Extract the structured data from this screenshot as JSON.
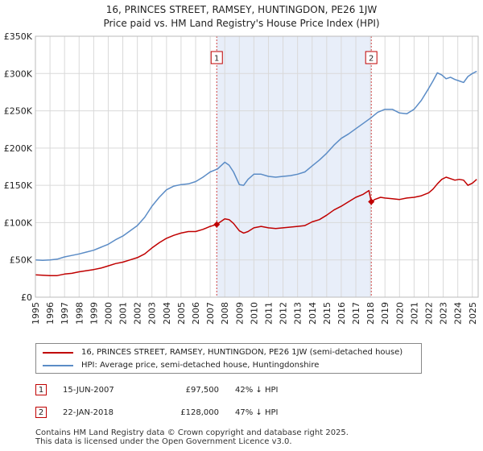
{
  "chart_data": {
    "type": "line",
    "title": "16, PRINCES STREET, RAMSEY, HUNTINGDON, PE26 1JW",
    "subtitle": "Price paid vs. HM Land Registry's House Price Index (HPI)",
    "ylim": [
      0,
      350000
    ],
    "xlim": [
      1995,
      2025.4
    ],
    "y_ticks": [
      0,
      50000,
      100000,
      150000,
      200000,
      250000,
      300000,
      350000
    ],
    "y_tick_labels": [
      "£0",
      "£50K",
      "£100K",
      "£150K",
      "£200K",
      "£250K",
      "£300K",
      "£350K"
    ],
    "x_ticks": [
      1995,
      1996,
      1997,
      1998,
      1999,
      2000,
      2001,
      2002,
      2003,
      2004,
      2005,
      2006,
      2007,
      2008,
      2009,
      2010,
      2011,
      2012,
      2013,
      2014,
      2015,
      2016,
      2017,
      2018,
      2019,
      2020,
      2021,
      2022,
      2023,
      2024,
      2025
    ],
    "shaded_period": [
      2007.45,
      2018.06
    ],
    "series": [
      {
        "name": "16, PRINCES STREET, RAMSEY, HUNTINGDON, PE26 1JW (semi-detached house)",
        "color": "#c00000",
        "x": [
          1995,
          1995.5,
          1996,
          1996.5,
          1997,
          1997.5,
          1998,
          1998.5,
          1999,
          1999.5,
          2000,
          2000.5,
          2001,
          2001.5,
          2002,
          2002.5,
          2003,
          2003.5,
          2004,
          2004.5,
          2005,
          2005.5,
          2006,
          2006.5,
          2007,
          2007.45,
          2007.7,
          2008,
          2008.3,
          2008.6,
          2009,
          2009.3,
          2009.6,
          2010,
          2010.5,
          2011,
          2011.5,
          2012,
          2012.5,
          2013,
          2013.5,
          2014,
          2014.5,
          2015,
          2015.5,
          2016,
          2016.5,
          2017,
          2017.5,
          2017.9,
          2018.06,
          2018.3,
          2018.7,
          2019,
          2019.5,
          2020,
          2020.5,
          2021,
          2021.5,
          2022,
          2022.3,
          2022.6,
          2022.9,
          2023.2,
          2023.5,
          2023.8,
          2024.1,
          2024.4,
          2024.7,
          2025,
          2025.3
        ],
        "values": [
          30000,
          29500,
          29000,
          29000,
          31000,
          32000,
          34000,
          35500,
          37000,
          39000,
          42000,
          45000,
          47000,
          50000,
          53000,
          58000,
          66000,
          73000,
          79000,
          83000,
          86000,
          88000,
          88000,
          91000,
          95000,
          97500,
          101000,
          105000,
          104000,
          99000,
          89000,
          86000,
          88000,
          93000,
          95000,
          93000,
          92000,
          93000,
          94000,
          95000,
          96000,
          101000,
          104000,
          110000,
          117000,
          122000,
          128000,
          134000,
          138000,
          143000,
          128000,
          131000,
          134000,
          133000,
          132000,
          131000,
          133000,
          134000,
          136000,
          140000,
          145000,
          152000,
          158000,
          161000,
          159000,
          157000,
          158000,
          157000,
          150000,
          153000,
          158000
        ]
      },
      {
        "name": "HPI: Average price, semi-detached house, Huntingdonshire",
        "color": "#5b8cc6",
        "x": [
          1995,
          1995.5,
          1996,
          1996.5,
          1997,
          1997.5,
          1998,
          1998.5,
          1999,
          1999.5,
          2000,
          2000.5,
          2001,
          2001.5,
          2002,
          2002.5,
          2003,
          2003.5,
          2004,
          2004.5,
          2005,
          2005.5,
          2006,
          2006.5,
          2007,
          2007.5,
          2008,
          2008.3,
          2008.6,
          2009,
          2009.3,
          2009.6,
          2010,
          2010.5,
          2011,
          2011.5,
          2012,
          2012.5,
          2013,
          2013.5,
          2014,
          2014.5,
          2015,
          2015.5,
          2016,
          2016.5,
          2017,
          2017.5,
          2018,
          2018.5,
          2019,
          2019.5,
          2020,
          2020.5,
          2021,
          2021.5,
          2022,
          2022.3,
          2022.6,
          2022.9,
          2023.2,
          2023.5,
          2023.8,
          2024.1,
          2024.4,
          2024.7,
          2025,
          2025.3
        ],
        "values": [
          50000,
          49500,
          50000,
          51000,
          54000,
          56000,
          58000,
          60500,
          63000,
          67000,
          71000,
          77000,
          82000,
          89000,
          96000,
          107000,
          122000,
          134000,
          144000,
          149000,
          151000,
          152000,
          155000,
          161000,
          168000,
          172000,
          181000,
          177000,
          168000,
          151000,
          150000,
          158000,
          165000,
          165000,
          162000,
          161000,
          162000,
          163000,
          165000,
          168000,
          176000,
          184000,
          193000,
          204000,
          213000,
          219000,
          226000,
          233000,
          240000,
          248000,
          252000,
          252000,
          247000,
          246000,
          252000,
          264000,
          280000,
          290000,
          301000,
          298000,
          293000,
          295000,
          292000,
          290000,
          288000,
          296000,
          300000,
          303000
        ]
      }
    ],
    "markers": [
      {
        "label": "1",
        "x": 2007.45,
        "y": 97500
      },
      {
        "label": "2",
        "x": 2018.06,
        "y": 128000
      }
    ]
  },
  "legend": {
    "property_label": "16, PRINCES STREET, RAMSEY, HUNTINGDON, PE26 1JW (semi-detached house)",
    "hpi_label": "HPI: Average price, semi-detached house, Huntingdonshire"
  },
  "transactions": [
    {
      "num": "1",
      "date": "15-JUN-2007",
      "price": "£97,500",
      "hpi": "42% ↓ HPI"
    },
    {
      "num": "2",
      "date": "22-JAN-2018",
      "price": "£128,000",
      "hpi": "47% ↓ HPI"
    }
  ],
  "footer": {
    "line1": "Contains HM Land Registry data © Crown copyright and database right 2025.",
    "line2": "This data is licensed under the Open Government Licence v3.0."
  },
  "colors": {
    "property": "#c00000",
    "hpi": "#5b8cc6",
    "shade": "#e8eef9",
    "grid": "#d9d9d9"
  }
}
